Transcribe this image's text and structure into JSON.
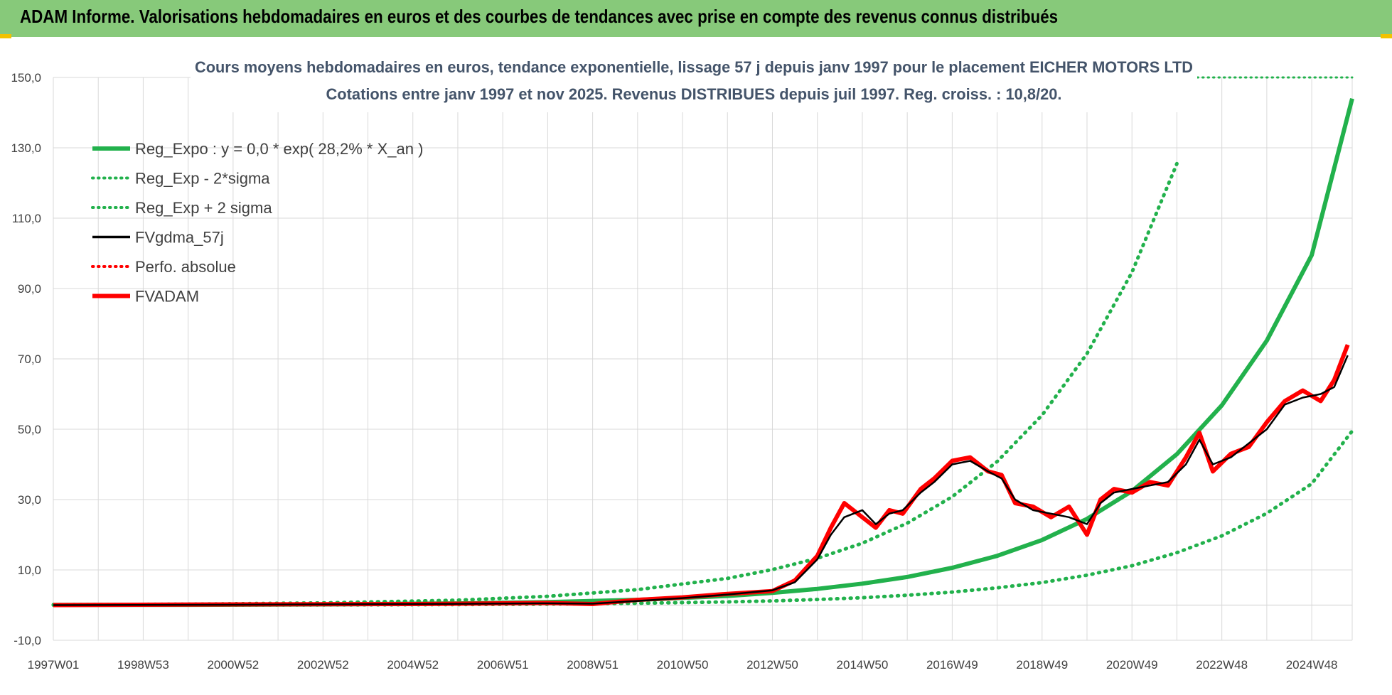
{
  "banner": {
    "title": "ADAM Informe. Valorisations hebdomadaires en euros et des courbes de tendances avec prise en compte des revenus connus distribués"
  },
  "colors": {
    "banner_bg": "#87c97a",
    "green": "#22b14c",
    "red": "#ff0000",
    "black": "#000000",
    "title": "#44546a",
    "grid": "#d9d9d9"
  },
  "chart_data": {
    "type": "line",
    "title": "Cours moyens hebdomadaires en euros, tendance exponentielle, lissage 57 j depuis janv 1997  pour le placement EICHER MOTORS LTD",
    "subtitle": "Cotations entre janv 1997 et nov 2025. Revenus  DISTRIBUES depuis juil 1997. Reg. croiss. : 10,8/20.",
    "xlabel": "",
    "ylabel": "",
    "x_range": [
      1997.0,
      2025.9
    ],
    "ylim": [
      -10,
      150
    ],
    "yticks": [
      "-10,0",
      "10,0",
      "30,0",
      "50,0",
      "70,0",
      "90,0",
      "110,0",
      "130,0",
      "150,0"
    ],
    "ytick_values": [
      -10,
      10,
      30,
      50,
      70,
      90,
      110,
      130,
      150
    ],
    "xticks": [
      "1997W01",
      "1998W53",
      "2000W52",
      "2002W52",
      "2004W52",
      "2006W51",
      "2008W51",
      "2010W50",
      "2012W50",
      "2014W50",
      "2016W49",
      "2018W49",
      "2020W49",
      "2022W48",
      "2024W48"
    ],
    "xtick_values": [
      1997.0,
      1999.0,
      2001.0,
      2003.0,
      2005.0,
      2007.0,
      2009.0,
      2011.0,
      2013.0,
      2015.0,
      2017.0,
      2019.0,
      2021.0,
      2023.0,
      2025.0
    ],
    "grid": true,
    "legend_position": "top-left",
    "legend": [
      {
        "label": "Reg_Expo : y = 0,0 * exp( 28,2% *  X_an )",
        "color": "#22b14c",
        "style": "solid"
      },
      {
        "label": "Reg_Exp - 2*sigma",
        "color": "#22b14c",
        "style": "dotted"
      },
      {
        "label": "Reg_Exp + 2 sigma",
        "color": "#22b14c",
        "style": "dotted"
      },
      {
        "label": "FVgdma_57j",
        "color": "#000000",
        "style": "solid"
      },
      {
        "label": "Perfo. absolue",
        "color": "#ff0000",
        "style": "dotted"
      },
      {
        "label": "FVADAM",
        "color": "#ff0000",
        "style": "solid-thick"
      }
    ],
    "series": [
      {
        "name": "Reg_Expo",
        "x": [
          1997,
          2000,
          2003,
          2006,
          2008,
          2010,
          2012,
          2013,
          2014,
          2015,
          2016,
          2017,
          2018,
          2019,
          2020,
          2021,
          2022,
          2023,
          2024,
          2025,
          2025.9
        ],
        "values": [
          0.04,
          0.09,
          0.21,
          0.48,
          0.84,
          1.5,
          2.6,
          3.5,
          4.6,
          6.1,
          8.0,
          10.6,
          14.0,
          18.5,
          24.5,
          32.4,
          42.9,
          56.8,
          75.2,
          99.5,
          144
        ]
      },
      {
        "name": "Reg_Exp - 2*sigma",
        "x": [
          1997,
          2000,
          2003,
          2006,
          2008,
          2010,
          2012,
          2013,
          2014,
          2015,
          2016,
          2017,
          2018,
          2019,
          2020,
          2021,
          2022,
          2023,
          2024,
          2025,
          2025.9
        ],
        "values": [
          0.01,
          0.03,
          0.07,
          0.16,
          0.29,
          0.52,
          0.9,
          1.2,
          1.6,
          2.1,
          2.8,
          3.7,
          4.9,
          6.4,
          8.5,
          11.2,
          14.9,
          19.7,
          26.1,
          34.5,
          49.5
        ]
      },
      {
        "name": "Reg_Exp + 2 sigma",
        "x": [
          1997,
          2000,
          2003,
          2006,
          2008,
          2010,
          2012,
          2013,
          2014,
          2015,
          2016,
          2017,
          2018,
          2019,
          2020,
          2021,
          2022
        ],
        "values": [
          0.12,
          0.27,
          0.62,
          1.4,
          2.5,
          4.4,
          7.6,
          10.1,
          13.3,
          17.6,
          23.3,
          30.8,
          40.8,
          54.0,
          71.5,
          94.6,
          125.5
        ]
      },
      {
        "name": "FVgdma_57j",
        "x": [
          1997,
          2001,
          2005,
          2008,
          2009,
          2010,
          2011,
          2012,
          2013,
          2013.5,
          2014,
          2014.3,
          2014.6,
          2015,
          2015.3,
          2015.6,
          2015.9,
          2016.3,
          2016.6,
          2017,
          2017.4,
          2017.8,
          2018.1,
          2018.4,
          2018.8,
          2019.2,
          2019.6,
          2020.0,
          2020.3,
          2020.6,
          2021.0,
          2021.4,
          2021.8,
          2022.2,
          2022.5,
          2022.8,
          2023.2,
          2023.6,
          2024.0,
          2024.4,
          2024.8,
          2025.2,
          2025.5,
          2025.8
        ],
        "values": [
          0,
          0.1,
          0.3,
          0.5,
          0.4,
          1.2,
          2.0,
          3.0,
          4.2,
          6.5,
          13,
          20,
          25,
          27,
          23,
          26,
          27,
          32,
          35,
          40,
          41,
          38,
          36,
          30,
          27,
          26,
          25,
          23,
          29,
          32,
          33,
          34,
          35,
          40,
          47,
          40,
          42,
          46,
          50,
          57,
          59,
          60,
          62,
          71
        ]
      },
      {
        "name": "FVADAM",
        "x": [
          1997,
          2001,
          2005,
          2008,
          2009,
          2010,
          2011,
          2012,
          2013,
          2013.5,
          2014,
          2014.3,
          2014.6,
          2015,
          2015.3,
          2015.6,
          2015.9,
          2016.3,
          2016.6,
          2017,
          2017.4,
          2017.8,
          2018.1,
          2018.4,
          2018.8,
          2019.2,
          2019.6,
          2020.0,
          2020.3,
          2020.6,
          2021.0,
          2021.4,
          2021.8,
          2022.2,
          2022.5,
          2022.8,
          2023.2,
          2023.6,
          2024.0,
          2024.4,
          2024.8,
          2025.2,
          2025.5,
          2025.8
        ],
        "values": [
          0,
          0.2,
          0.3,
          0.6,
          0.3,
          1.5,
          2.2,
          3.2,
          4.0,
          7.0,
          14,
          22,
          29,
          25,
          22,
          27,
          26,
          33,
          36,
          41,
          42,
          38,
          37,
          29,
          28,
          25,
          28,
          20,
          30,
          33,
          32,
          35,
          34,
          42,
          49,
          38,
          43,
          45,
          52,
          58,
          61,
          58,
          64,
          74
        ]
      }
    ]
  }
}
